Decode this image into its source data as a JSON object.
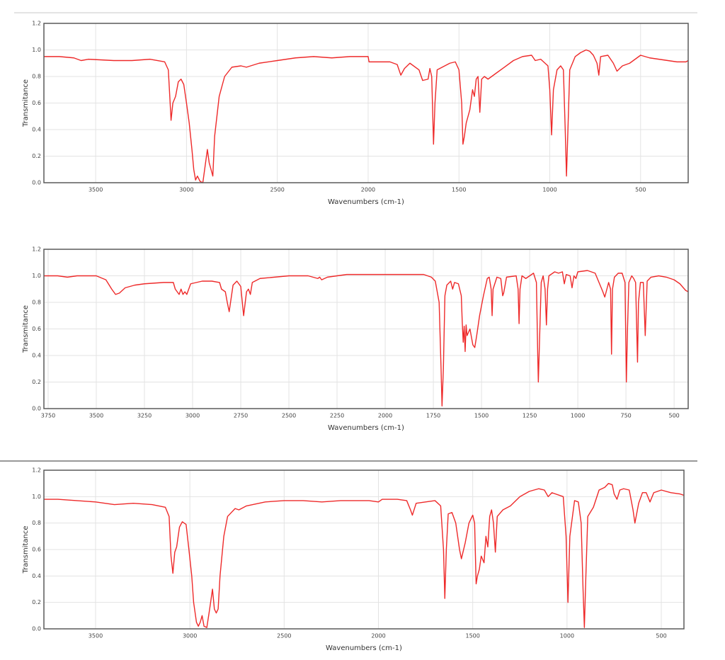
{
  "chart_data": [
    {
      "type": "line",
      "xlabel": "Wavenumbers (cm-1)",
      "ylabel": "Transmitance",
      "color": "#ee2a2a",
      "grid": true,
      "xlim": [
        3785,
        238
      ],
      "ylim": [
        0,
        1.2
      ],
      "xticks": [
        3500,
        3000,
        2500,
        2000,
        1500,
        1000,
        500
      ],
      "yticks": [
        {
          "value": 0,
          "label": "0.0"
        },
        0.2,
        0.4,
        0.6,
        0.8,
        {
          "value": 1,
          "label": "1.0"
        },
        1.2
      ],
      "x": [
        3785,
        3700,
        3620,
        3580,
        3540,
        3400,
        3300,
        3200,
        3120,
        3100,
        3090,
        3085,
        3075,
        3060,
        3045,
        3030,
        3015,
        3000,
        2985,
        2970,
        2960,
        2950,
        2940,
        2925,
        2910,
        2895,
        2885,
        2875,
        2865,
        2855,
        2845,
        2820,
        2790,
        2750,
        2700,
        2670,
        2600,
        2500,
        2400,
        2300,
        2200,
        2100,
        2000,
        1995,
        1950,
        1880,
        1840,
        1820,
        1800,
        1770,
        1720,
        1700,
        1670,
        1660,
        1650,
        1645,
        1640,
        1632,
        1620,
        1550,
        1520,
        1500,
        1485,
        1478,
        1470,
        1460,
        1440,
        1425,
        1415,
        1405,
        1395,
        1385,
        1375,
        1360,
        1340,
        1300,
        1250,
        1200,
        1150,
        1100,
        1080,
        1050,
        1010,
        1000,
        990,
        980,
        960,
        940,
        925,
        915,
        908,
        900,
        890,
        860,
        830,
        800,
        780,
        760,
        740,
        730,
        720,
        680,
        650,
        630,
        600,
        560,
        540,
        500,
        450,
        400,
        350,
        300,
        250,
        238
      ],
      "values": [
        0.95,
        0.95,
        0.94,
        0.92,
        0.93,
        0.92,
        0.92,
        0.93,
        0.91,
        0.85,
        0.6,
        0.47,
        0.6,
        0.65,
        0.76,
        0.78,
        0.74,
        0.6,
        0.45,
        0.25,
        0.1,
        0.02,
        0.05,
        0.01,
        0,
        0.15,
        0.25,
        0.15,
        0.1,
        0.05,
        0.35,
        0.65,
        0.8,
        0.87,
        0.88,
        0.87,
        0.9,
        0.92,
        0.94,
        0.95,
        0.94,
        0.95,
        0.95,
        0.91,
        0.91,
        0.91,
        0.89,
        0.81,
        0.86,
        0.9,
        0.85,
        0.77,
        0.78,
        0.86,
        0.8,
        0.55,
        0.29,
        0.6,
        0.85,
        0.9,
        0.91,
        0.85,
        0.6,
        0.29,
        0.35,
        0.45,
        0.55,
        0.7,
        0.65,
        0.78,
        0.8,
        0.53,
        0.78,
        0.8,
        0.78,
        0.82,
        0.87,
        0.92,
        0.95,
        0.96,
        0.92,
        0.93,
        0.88,
        0.7,
        0.36,
        0.7,
        0.85,
        0.88,
        0.85,
        0.4,
        0.05,
        0.4,
        0.85,
        0.95,
        0.98,
        1,
        0.99,
        0.96,
        0.9,
        0.81,
        0.95,
        0.96,
        0.9,
        0.84,
        0.88,
        0.9,
        0.92,
        0.96,
        0.94,
        0.93,
        0.92,
        0.91,
        0.91,
        0.92
      ]
    },
    {
      "type": "line",
      "xlabel": "Wavenumbers (cm-1)",
      "ylabel": "Transmitance",
      "color": "#ee2a2a",
      "grid": true,
      "xlim": [
        3772,
        427
      ],
      "ylim": [
        0,
        1.2
      ],
      "xticks": [
        3750,
        3500,
        3250,
        3000,
        2750,
        2500,
        2250,
        2000,
        1750,
        1500,
        1250,
        1000,
        750,
        500
      ],
      "yticks": [
        {
          "value": 0,
          "label": "0.0"
        },
        0.2,
        0.4,
        0.6,
        0.8,
        {
          "value": 1,
          "label": "1.0"
        },
        1.2
      ],
      "x": [
        3772,
        3700,
        3650,
        3600,
        3500,
        3450,
        3420,
        3400,
        3380,
        3350,
        3300,
        3250,
        3150,
        3100,
        3090,
        3080,
        3070,
        3060,
        3050,
        3040,
        3030,
        3010,
        2950,
        2900,
        2860,
        2850,
        2840,
        2830,
        2820,
        2810,
        2790,
        2770,
        2750,
        2735,
        2720,
        2710,
        2700,
        2690,
        2650,
        2500,
        2400,
        2350,
        2340,
        2330,
        2300,
        2200,
        2000,
        1800,
        1760,
        1740,
        1720,
        1710,
        1705,
        1698,
        1690,
        1680,
        1660,
        1650,
        1640,
        1620,
        1605,
        1600,
        1595,
        1590,
        1585,
        1580,
        1575,
        1560,
        1545,
        1535,
        1525,
        1510,
        1490,
        1470,
        1460,
        1450,
        1445,
        1440,
        1420,
        1400,
        1390,
        1385,
        1370,
        1320,
        1310,
        1305,
        1300,
        1290,
        1270,
        1230,
        1215,
        1208,
        1205,
        1200,
        1190,
        1180,
        1170,
        1163,
        1157,
        1150,
        1120,
        1100,
        1080,
        1070,
        1060,
        1040,
        1030,
        1020,
        1010,
        1000,
        950,
        910,
        890,
        870,
        860,
        840,
        830,
        825,
        820,
        810,
        790,
        770,
        755,
        748,
        742,
        735,
        720,
        710,
        700,
        690,
        685,
        675,
        660,
        650,
        640,
        620,
        580,
        540,
        500,
        470,
        440,
        427
      ],
      "values": [
        1,
        1,
        0.99,
        1,
        1,
        0.97,
        0.9,
        0.86,
        0.87,
        0.91,
        0.93,
        0.94,
        0.95,
        0.95,
        0.9,
        0.88,
        0.86,
        0.9,
        0.86,
        0.88,
        0.86,
        0.94,
        0.96,
        0.96,
        0.95,
        0.9,
        0.89,
        0.88,
        0.8,
        0.73,
        0.93,
        0.96,
        0.92,
        0.7,
        0.88,
        0.9,
        0.86,
        0.95,
        0.98,
        1,
        1,
        0.98,
        0.99,
        0.97,
        0.99,
        1.01,
        1.01,
        1.01,
        0.99,
        0.96,
        0.8,
        0.3,
        0.02,
        0.3,
        0.85,
        0.93,
        0.96,
        0.9,
        0.95,
        0.94,
        0.85,
        0.65,
        0.5,
        0.62,
        0.43,
        0.63,
        0.55,
        0.6,
        0.48,
        0.46,
        0.55,
        0.7,
        0.85,
        0.98,
        0.99,
        0.9,
        0.7,
        0.9,
        0.99,
        0.98,
        0.85,
        0.87,
        0.99,
        1,
        0.9,
        0.64,
        0.9,
        1,
        0.98,
        1.02,
        0.95,
        0.4,
        0.2,
        0.45,
        0.95,
        1,
        0.9,
        0.63,
        0.9,
        1,
        1.03,
        1.02,
        1.03,
        0.94,
        1.01,
        1,
        0.91,
        1,
        0.98,
        1.03,
        1.04,
        1.02,
        0.95,
        0.88,
        0.84,
        0.95,
        0.9,
        0.41,
        0.9,
        0.99,
        1.02,
        1.02,
        0.95,
        0.2,
        0.6,
        0.95,
        1,
        0.98,
        0.95,
        0.35,
        0.8,
        0.95,
        0.95,
        0.55,
        0.96,
        0.99,
        1,
        0.99,
        0.97,
        0.94,
        0.89,
        0.88
      ]
    },
    {
      "type": "line",
      "xlabel": "Wavenumbers (cm-1)",
      "ylabel": "Transmitance",
      "color": "#ee2a2a",
      "grid": true,
      "xlim": [
        3774,
        380
      ],
      "ylim": [
        0,
        1.2
      ],
      "xticks": [
        3500,
        3000,
        2500,
        2000,
        1500,
        1000,
        500
      ],
      "yticks": [
        {
          "value": 0,
          "label": "0.0"
        },
        0.2,
        0.4,
        0.6,
        0.8,
        {
          "value": 1,
          "label": "1.0"
        },
        1.2
      ],
      "x": [
        3774,
        3700,
        3600,
        3500,
        3400,
        3300,
        3200,
        3130,
        3110,
        3100,
        3090,
        3080,
        3070,
        3055,
        3040,
        3020,
        3005,
        2990,
        2980,
        2965,
        2955,
        2945,
        2935,
        2925,
        2910,
        2895,
        2880,
        2870,
        2860,
        2850,
        2840,
        2820,
        2800,
        2760,
        2740,
        2700,
        2600,
        2500,
        2400,
        2300,
        2200,
        2050,
        2000,
        1980,
        1900,
        1850,
        1830,
        1820,
        1800,
        1700,
        1670,
        1655,
        1648,
        1640,
        1630,
        1610,
        1590,
        1570,
        1560,
        1540,
        1520,
        1500,
        1490,
        1482,
        1475,
        1465,
        1455,
        1440,
        1430,
        1420,
        1410,
        1400,
        1390,
        1380,
        1370,
        1340,
        1300,
        1250,
        1200,
        1150,
        1120,
        1100,
        1080,
        1020,
        1005,
        995,
        985,
        960,
        940,
        925,
        915,
        908,
        900,
        890,
        860,
        830,
        800,
        780,
        760,
        750,
        735,
        720,
        700,
        670,
        650,
        640,
        620,
        600,
        580,
        560,
        540,
        500,
        450,
        400,
        380
      ],
      "values": [
        0.98,
        0.98,
        0.97,
        0.96,
        0.94,
        0.95,
        0.94,
        0.92,
        0.85,
        0.55,
        0.42,
        0.58,
        0.62,
        0.77,
        0.81,
        0.79,
        0.6,
        0.4,
        0.2,
        0.05,
        0.02,
        0.05,
        0.1,
        0.02,
        0.01,
        0.15,
        0.3,
        0.15,
        0.12,
        0.15,
        0.4,
        0.7,
        0.85,
        0.91,
        0.9,
        0.93,
        0.96,
        0.97,
        0.97,
        0.96,
        0.97,
        0.97,
        0.96,
        0.98,
        0.98,
        0.97,
        0.9,
        0.86,
        0.95,
        0.97,
        0.93,
        0.6,
        0.23,
        0.6,
        0.87,
        0.88,
        0.8,
        0.6,
        0.53,
        0.65,
        0.8,
        0.86,
        0.8,
        0.34,
        0.4,
        0.45,
        0.55,
        0.5,
        0.7,
        0.62,
        0.85,
        0.9,
        0.8,
        0.58,
        0.85,
        0.9,
        0.93,
        1,
        1.04,
        1.06,
        1.05,
        1,
        1.03,
        1,
        0.7,
        0.2,
        0.7,
        0.97,
        0.96,
        0.8,
        0.3,
        0.01,
        0.4,
        0.85,
        0.92,
        1.05,
        1.07,
        1.1,
        1.09,
        1.02,
        0.98,
        1.05,
        1.06,
        1.05,
        0.9,
        0.8,
        0.95,
        1.03,
        1.03,
        0.96,
        1.03,
        1.05,
        1.03,
        1.02,
        1.01
      ]
    }
  ]
}
